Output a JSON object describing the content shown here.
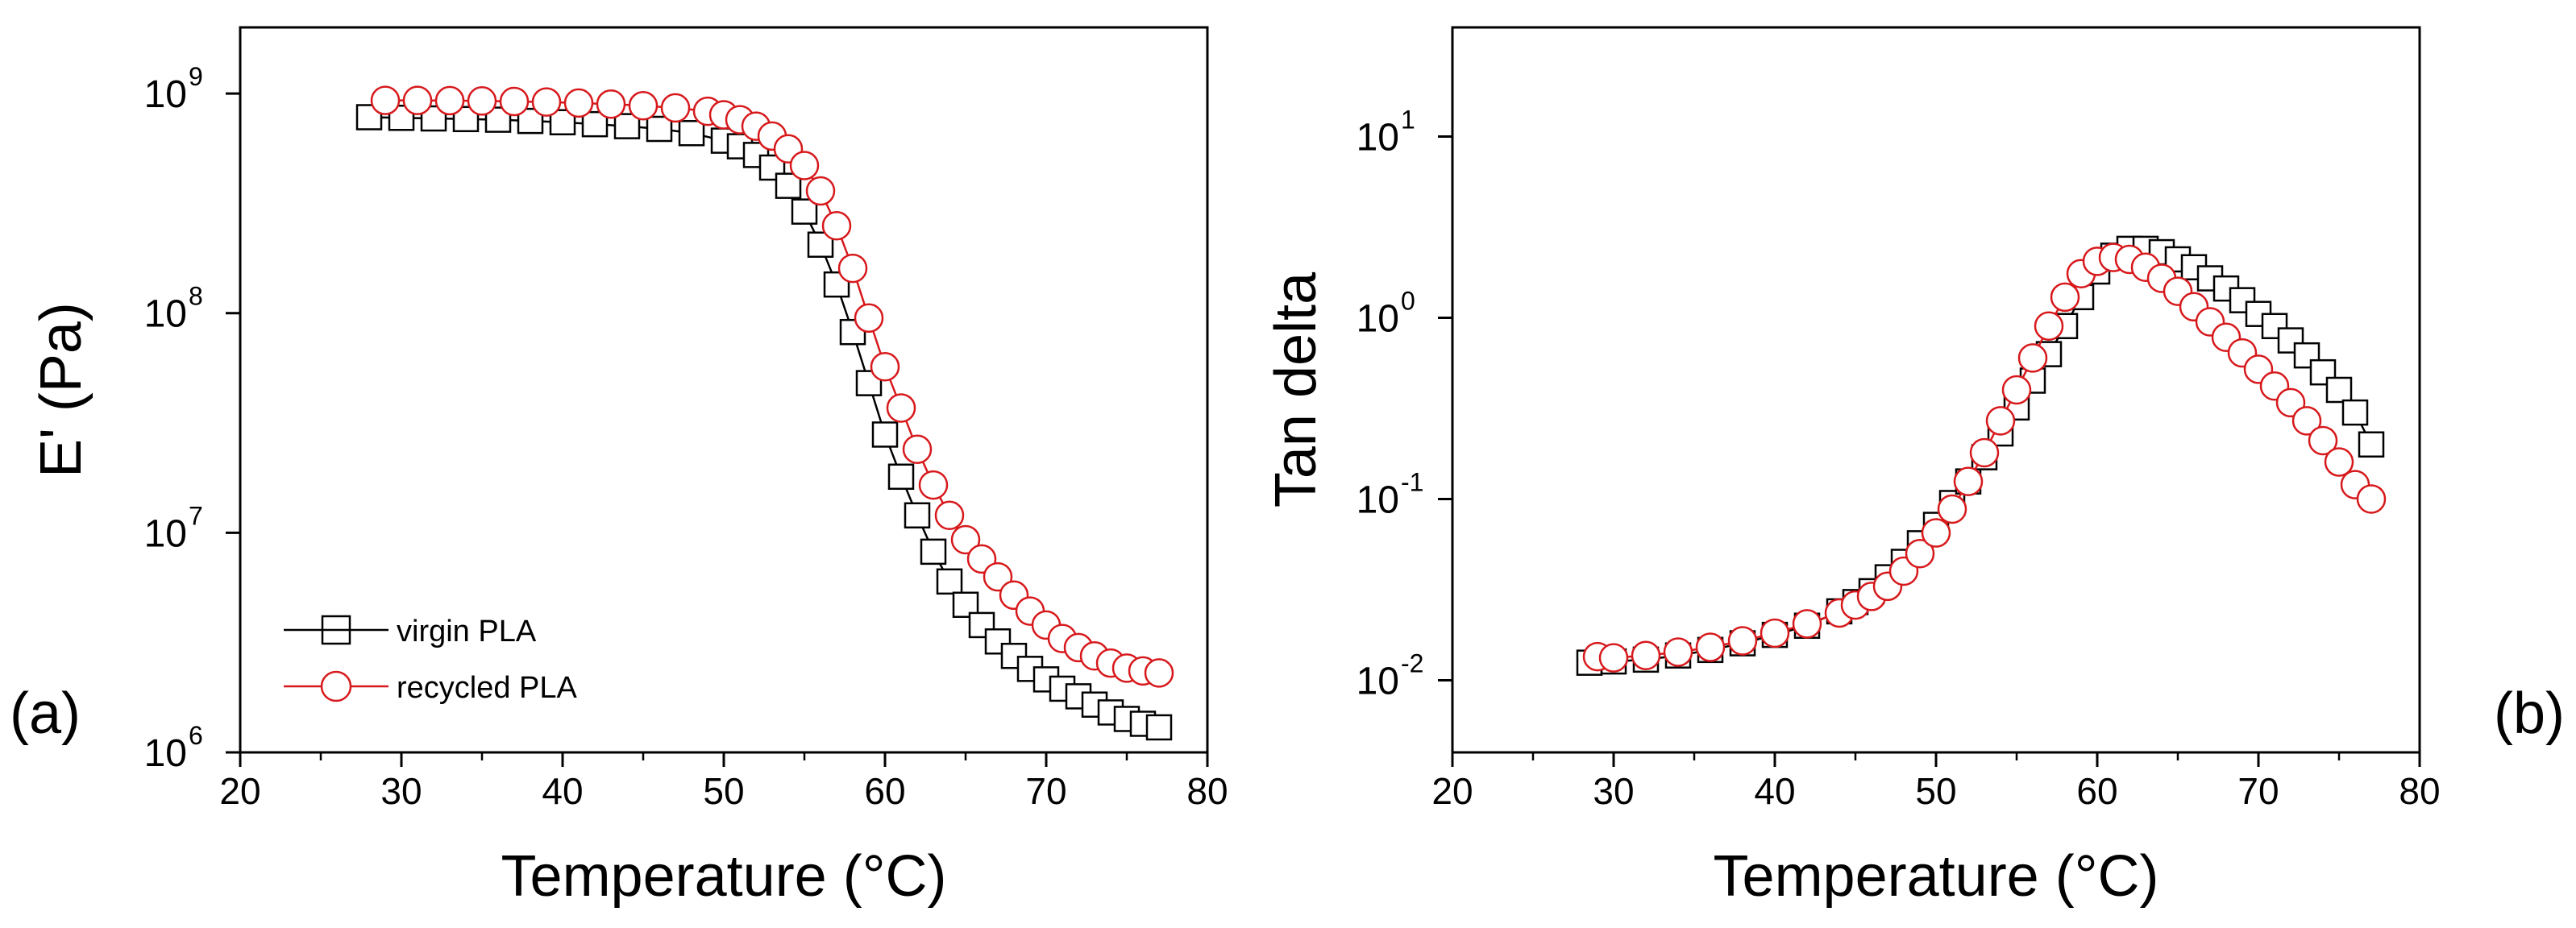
{
  "colors": {
    "virgin": "#000000",
    "recycled": "#d7191c",
    "axis": "#000000",
    "background": "#ffffff"
  },
  "chart_data": [
    {
      "type": "scatter",
      "panel_label": "(a)",
      "title": "",
      "xlabel": "Temperature (°C)",
      "ylabel": "E' (Pa)",
      "yscale": "log",
      "xlim": [
        20,
        80
      ],
      "ylim": [
        1000000,
        2000000000
      ],
      "x_ticks": [
        20,
        30,
        40,
        50,
        60,
        70,
        80
      ],
      "y_ticks": [
        {
          "value": 1000000,
          "base": "10",
          "exp": "6"
        },
        {
          "value": 10000000,
          "base": "10",
          "exp": "7"
        },
        {
          "value": 100000000,
          "base": "10",
          "exp": "8"
        },
        {
          "value": 1000000000,
          "base": "10",
          "exp": "9"
        }
      ],
      "legend": {
        "position": "bottom-left",
        "entries": [
          "virgin PLA",
          "recycled PLA"
        ]
      },
      "series": [
        {
          "name": "virgin PLA",
          "marker": "square",
          "x": [
            28,
            30,
            32,
            34,
            36,
            38,
            40,
            42,
            44,
            46,
            48,
            50,
            51,
            52,
            53,
            54,
            55,
            56,
            57,
            58,
            59,
            60,
            61,
            62,
            63,
            64,
            65,
            66,
            67,
            68,
            69,
            70,
            71,
            72,
            73,
            74,
            75,
            76,
            77
          ],
          "y": [
            780000000,
            775000000,
            770000000,
            765000000,
            760000000,
            750000000,
            740000000,
            725000000,
            710000000,
            690000000,
            660000000,
            610000000,
            575000000,
            525000000,
            460000000,
            380000000,
            290000000,
            205000000,
            135000000,
            82000000,
            48000000,
            28000000,
            18000000,
            12000000,
            8200000,
            6000000,
            4700000,
            3800000,
            3200000,
            2750000,
            2400000,
            2150000,
            1950000,
            1800000,
            1650000,
            1520000,
            1420000,
            1350000,
            1300000
          ]
        },
        {
          "name": "recycled PLA",
          "marker": "circle",
          "x": [
            29,
            31,
            33,
            35,
            37,
            39,
            41,
            43,
            45,
            47,
            49,
            50,
            51,
            52,
            53,
            54,
            55,
            56,
            57,
            58,
            59,
            60,
            61,
            62,
            63,
            64,
            65,
            66,
            67,
            68,
            69,
            70,
            71,
            72,
            73,
            74,
            75,
            76,
            77
          ],
          "y": [
            930000000,
            930000000,
            928000000,
            925000000,
            920000000,
            915000000,
            905000000,
            895000000,
            880000000,
            860000000,
            830000000,
            800000000,
            760000000,
            710000000,
            640000000,
            560000000,
            470000000,
            360000000,
            250000000,
            160000000,
            95000000,
            57000000,
            37000000,
            24000000,
            16500000,
            12000000,
            9300000,
            7600000,
            6300000,
            5200000,
            4400000,
            3800000,
            3300000,
            3000000,
            2750000,
            2550000,
            2420000,
            2350000,
            2300000
          ]
        }
      ]
    },
    {
      "type": "scatter",
      "panel_label": "(b)",
      "title": "",
      "xlabel": "Temperature (°C)",
      "ylabel": "Tan delta",
      "yscale": "log",
      "xlim": [
        20,
        80
      ],
      "ylim": [
        0.004,
        40
      ],
      "x_ticks": [
        20,
        30,
        40,
        50,
        60,
        70,
        80
      ],
      "y_ticks": [
        {
          "value": 0.01,
          "base": "10",
          "exp": "-2"
        },
        {
          "value": 0.1,
          "base": "10",
          "exp": "-1"
        },
        {
          "value": 1,
          "base": "10",
          "exp": "0"
        },
        {
          "value": 10,
          "base": "10",
          "exp": "1"
        }
      ],
      "series": [
        {
          "name": "virgin PLA",
          "marker": "square",
          "x": [
            28.5,
            30,
            32,
            34,
            36,
            38,
            40,
            42,
            44,
            45,
            46,
            47,
            48,
            49,
            50,
            51,
            52,
            53,
            54,
            55,
            56,
            57,
            58,
            59,
            60,
            61,
            62,
            63,
            64,
            65,
            66,
            67,
            68,
            69,
            70,
            71,
            72,
            73,
            74,
            75,
            76,
            77
          ],
          "y": [
            0.0125,
            0.0127,
            0.013,
            0.0137,
            0.0147,
            0.016,
            0.0178,
            0.02,
            0.024,
            0.027,
            0.031,
            0.037,
            0.045,
            0.057,
            0.072,
            0.095,
            0.125,
            0.17,
            0.23,
            0.32,
            0.45,
            0.63,
            0.9,
            1.3,
            1.8,
            2.2,
            2.4,
            2.4,
            2.3,
            2.1,
            1.9,
            1.65,
            1.45,
            1.25,
            1.05,
            0.9,
            0.75,
            0.62,
            0.5,
            0.4,
            0.3,
            0.2
          ]
        },
        {
          "name": "recycled PLA",
          "marker": "circle",
          "x": [
            29,
            30,
            32,
            34,
            36,
            38,
            40,
            42,
            44,
            45,
            46,
            47,
            48,
            49,
            50,
            51,
            52,
            53,
            54,
            55,
            56,
            57,
            58,
            59,
            60,
            61,
            62,
            63,
            64,
            65,
            66,
            67,
            68,
            69,
            70,
            71,
            72,
            73,
            74,
            75,
            76,
            77
          ],
          "y": [
            0.0135,
            0.0133,
            0.0137,
            0.0143,
            0.0152,
            0.0165,
            0.0182,
            0.0205,
            0.0235,
            0.026,
            0.029,
            0.033,
            0.04,
            0.05,
            0.065,
            0.088,
            0.125,
            0.18,
            0.27,
            0.4,
            0.6,
            0.9,
            1.3,
            1.75,
            2.05,
            2.15,
            2.1,
            1.9,
            1.65,
            1.4,
            1.15,
            0.95,
            0.78,
            0.64,
            0.52,
            0.42,
            0.34,
            0.27,
            0.21,
            0.16,
            0.12,
            0.1
          ]
        }
      ]
    }
  ]
}
